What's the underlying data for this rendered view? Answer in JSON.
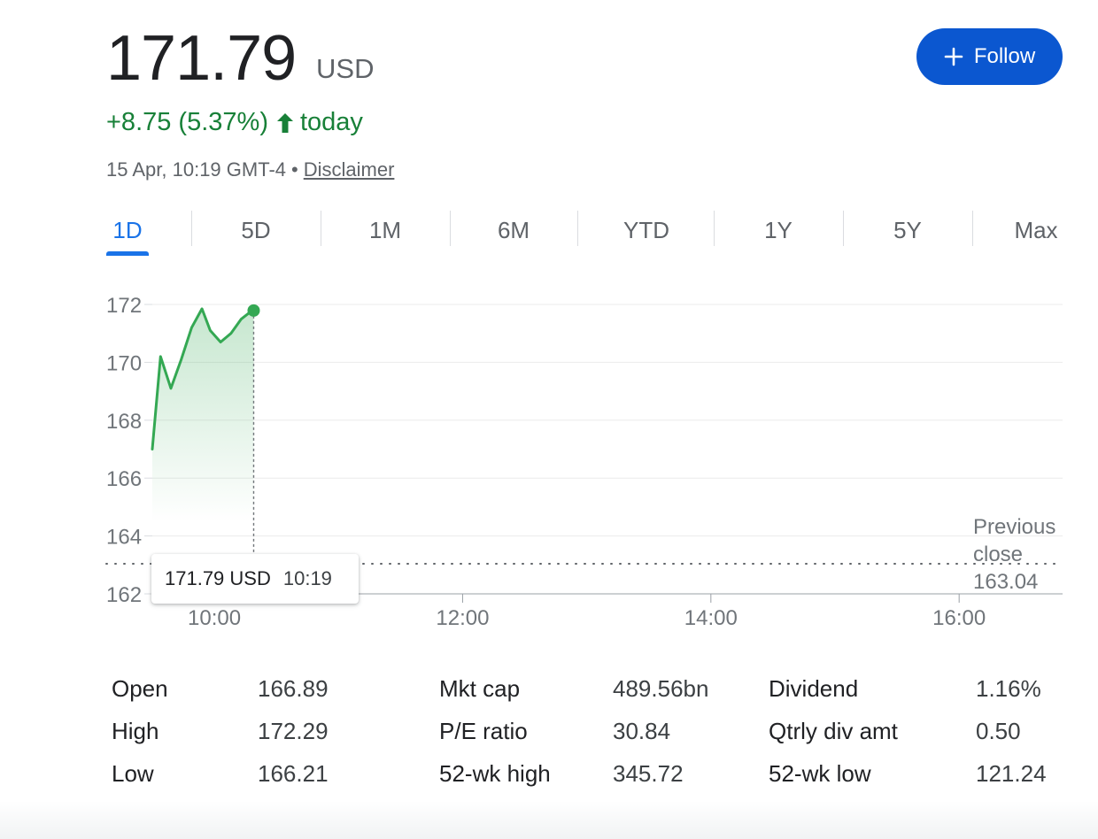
{
  "quote": {
    "price": "171.79",
    "currency": "USD",
    "change": "+8.75 (5.37%)",
    "change_suffix": "today",
    "timestamp": "15 Apr, 10:19 GMT-4",
    "separator": "•",
    "disclaimer": "Disclaimer"
  },
  "follow_button": {
    "label": "Follow",
    "icon": "plus-icon"
  },
  "tabs": [
    {
      "label": "1D",
      "active": true
    },
    {
      "label": "5D",
      "active": false
    },
    {
      "label": "1M",
      "active": false
    },
    {
      "label": "6M",
      "active": false
    },
    {
      "label": "YTD",
      "active": false
    },
    {
      "label": "1Y",
      "active": false
    },
    {
      "label": "5Y",
      "active": false
    },
    {
      "label": "Max",
      "active": false
    }
  ],
  "colors": {
    "positive": "#188038",
    "line": "#34a853",
    "accent": "#1a73e8",
    "button": "#0b57d0",
    "muted": "#70757a"
  },
  "chart_data": {
    "type": "line",
    "x_label_ticks": [
      "10:00",
      "12:00",
      "14:00",
      "16:00"
    ],
    "y_ticks": [
      162,
      164,
      166,
      168,
      170,
      172
    ],
    "ylim": [
      162,
      172
    ],
    "xlim": [
      "09:30",
      "16:50"
    ],
    "grid": true,
    "series": [
      {
        "x": [
          "09:30",
          "09:34",
          "09:39",
          "09:44",
          "09:49",
          "09:54",
          "09:58",
          "10:03",
          "10:08",
          "10:13",
          "10:17",
          "10:19"
        ],
        "values": [
          167.0,
          170.2,
          169.1,
          170.1,
          171.2,
          171.85,
          171.1,
          170.7,
          171.0,
          171.5,
          171.72,
          171.79
        ]
      }
    ],
    "previous_close": {
      "label": "Previous close",
      "value": 163.04
    },
    "tooltip": {
      "price": "171.79 USD",
      "time": "10:19"
    }
  },
  "stats": {
    "columns": [
      [
        {
          "label": "Open",
          "value": "166.89"
        },
        {
          "label": "High",
          "value": "172.29"
        },
        {
          "label": "Low",
          "value": "166.21"
        }
      ],
      [
        {
          "label": "Mkt cap",
          "value": "489.56bn"
        },
        {
          "label": "P/E ratio",
          "value": "30.84"
        },
        {
          "label": "52-wk high",
          "value": "345.72"
        }
      ],
      [
        {
          "label": "Dividend",
          "value": "1.16%"
        },
        {
          "label": "Qtrly div amt",
          "value": "0.50"
        },
        {
          "label": "52-wk low",
          "value": "121.24"
        }
      ]
    ]
  }
}
